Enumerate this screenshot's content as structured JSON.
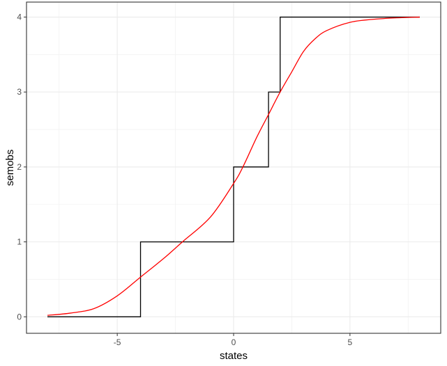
{
  "chart_data": {
    "type": "line",
    "title": "",
    "xlabel": "states",
    "ylabel": "semobs",
    "xlim": [
      -8.9,
      8.9
    ],
    "ylim": [
      -0.22,
      4.2
    ],
    "x_ticks": [
      -5,
      0,
      5
    ],
    "y_ticks": [
      0,
      1,
      2,
      3,
      4
    ],
    "grid": true,
    "series": [
      {
        "style": "step",
        "color": "#000000",
        "x": [
          -8,
          -4,
          -4,
          0,
          0,
          1.5,
          1.5,
          2,
          2,
          8
        ],
        "y": [
          0,
          0,
          1,
          1,
          2,
          2,
          3,
          3,
          4,
          4
        ]
      },
      {
        "style": "smooth",
        "color": "#ff0000",
        "x": [
          -8,
          -7,
          -6,
          -5,
          -4,
          -3,
          -2.2,
          -1,
          0,
          0.4,
          1,
          1.5,
          2,
          2.5,
          3,
          3.5,
          4,
          5,
          6,
          7,
          8
        ],
        "y": [
          0.02,
          0.05,
          0.11,
          0.28,
          0.53,
          0.78,
          1.0,
          1.33,
          1.78,
          2.0,
          2.4,
          2.7,
          3.0,
          3.27,
          3.54,
          3.71,
          3.82,
          3.93,
          3.97,
          3.99,
          4.0
        ]
      }
    ]
  }
}
